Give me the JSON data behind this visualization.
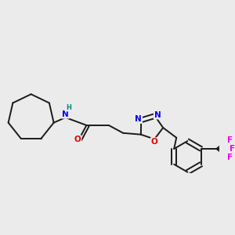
{
  "background_color": "#ebebeb",
  "bond_color": "#1a1a1a",
  "atom_colors": {
    "N": "#0000ee",
    "O": "#dd0000",
    "F": "#ee00ee",
    "C": "#1a1a1a",
    "H": "#008888"
  },
  "figsize": [
    3.0,
    3.0
  ],
  "dpi": 100,
  "lw": 1.4,
  "fs": 7.5
}
